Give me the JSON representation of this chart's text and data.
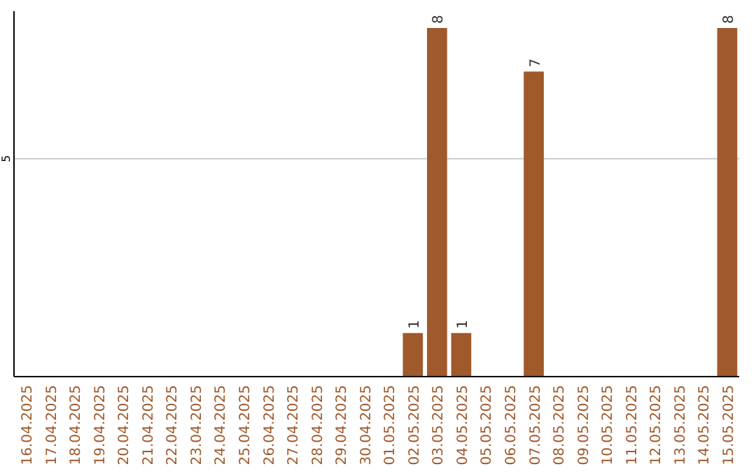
{
  "chart_data": {
    "type": "bar",
    "categories": [
      "16.04.2025",
      "17.04.2025",
      "18.04.2025",
      "19.04.2025",
      "20.04.2025",
      "21.04.2025",
      "22.04.2025",
      "23.04.2025",
      "24.04.2025",
      "25.04.2025",
      "26.04.2025",
      "27.04.2025",
      "28.04.2025",
      "29.04.2025",
      "30.04.2025",
      "01.05.2025",
      "02.05.2025",
      "03.05.2025",
      "04.05.2025",
      "05.05.2025",
      "06.05.2025",
      "07.05.2025",
      "08.05.2025",
      "09.05.2025",
      "10.05.2025",
      "11.05.2025",
      "12.05.2025",
      "13.05.2025",
      "14.05.2025",
      "15.05.2025"
    ],
    "values": [
      null,
      null,
      null,
      null,
      null,
      null,
      null,
      null,
      null,
      null,
      null,
      null,
      null,
      null,
      null,
      null,
      1,
      8,
      1,
      null,
      null,
      7,
      null,
      null,
      null,
      null,
      null,
      null,
      null,
      8
    ],
    "data_labels": true,
    "color": "#a0592b",
    "ylim": [
      0,
      8
    ],
    "yticks": [
      5
    ],
    "grid": "y"
  }
}
